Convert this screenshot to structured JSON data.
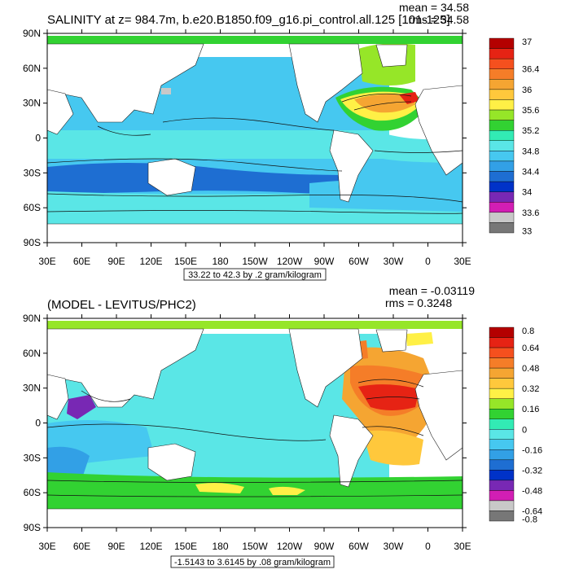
{
  "chart_data": [
    {
      "type": "heatmap",
      "title": "SALINITY at z= 984.7m, b.e20.B1850.f09_g16.pi_control.all.125 [101-125]",
      "stats": {
        "mean": "mean = 34.58",
        "rms": "rms = 34.58"
      },
      "range_label": "33.22 to 42.3 by .2 gram/kilogram",
      "x_ticks": [
        "30E",
        "60E",
        "90E",
        "120E",
        "150E",
        "180",
        "150W",
        "120W",
        "90W",
        "60W",
        "30W",
        "0",
        "30E"
      ],
      "y_ticks": [
        "90N",
        "60N",
        "30N",
        "0",
        "30S",
        "60S",
        "90S"
      ],
      "xlim": [
        30,
        390
      ],
      "ylim": [
        -90,
        90
      ],
      "colorbar": {
        "labels": [
          "37",
          "36.4",
          "36",
          "35.6",
          "35.2",
          "34.8",
          "34.4",
          "34",
          "33.6",
          "33"
        ],
        "colors": [
          "#b40000",
          "#e62314",
          "#f5501e",
          "#f57d28",
          "#f5a532",
          "#ffc83c",
          "#fff046",
          "#96e628",
          "#32d232",
          "#32ebb4",
          "#5ae6e6",
          "#46c8f0",
          "#32a0e6",
          "#1e6ed2",
          "#0032c8",
          "#7828b4",
          "#d21eb4",
          "#c8c8c8",
          "#777777"
        ]
      }
    },
    {
      "type": "heatmap",
      "title": "(MODEL - LEVITUS/PHC2)",
      "stats": {
        "mean": "mean = -0.03119",
        "rms": "rms = 0.3248"
      },
      "range_label": "-1.5143 to 3.6145 by .08 gram/kilogram",
      "x_ticks": [
        "30E",
        "60E",
        "90E",
        "120E",
        "150E",
        "180",
        "150W",
        "120W",
        "90W",
        "60W",
        "30W",
        "0",
        "30E"
      ],
      "y_ticks": [
        "90N",
        "60N",
        "30N",
        "0",
        "30S",
        "60S",
        "90S"
      ],
      "xlim": [
        30,
        390
      ],
      "ylim": [
        -90,
        90
      ],
      "colorbar": {
        "labels": [
          "0.8",
          "0.64",
          "0.48",
          "0.32",
          "0.16",
          "0",
          "-0.16",
          "-0.32",
          "-0.48",
          "-0.64",
          "-0.8"
        ],
        "colors": [
          "#b40000",
          "#e62314",
          "#f5501e",
          "#f57d28",
          "#f5a532",
          "#ffc83c",
          "#fff046",
          "#96e628",
          "#32d232",
          "#32ebb4",
          "#5ae6e6",
          "#46c8f0",
          "#32a0e6",
          "#1e6ed2",
          "#0032c8",
          "#7828b4",
          "#d21eb4",
          "#c8c8c8",
          "#777777"
        ]
      }
    }
  ]
}
